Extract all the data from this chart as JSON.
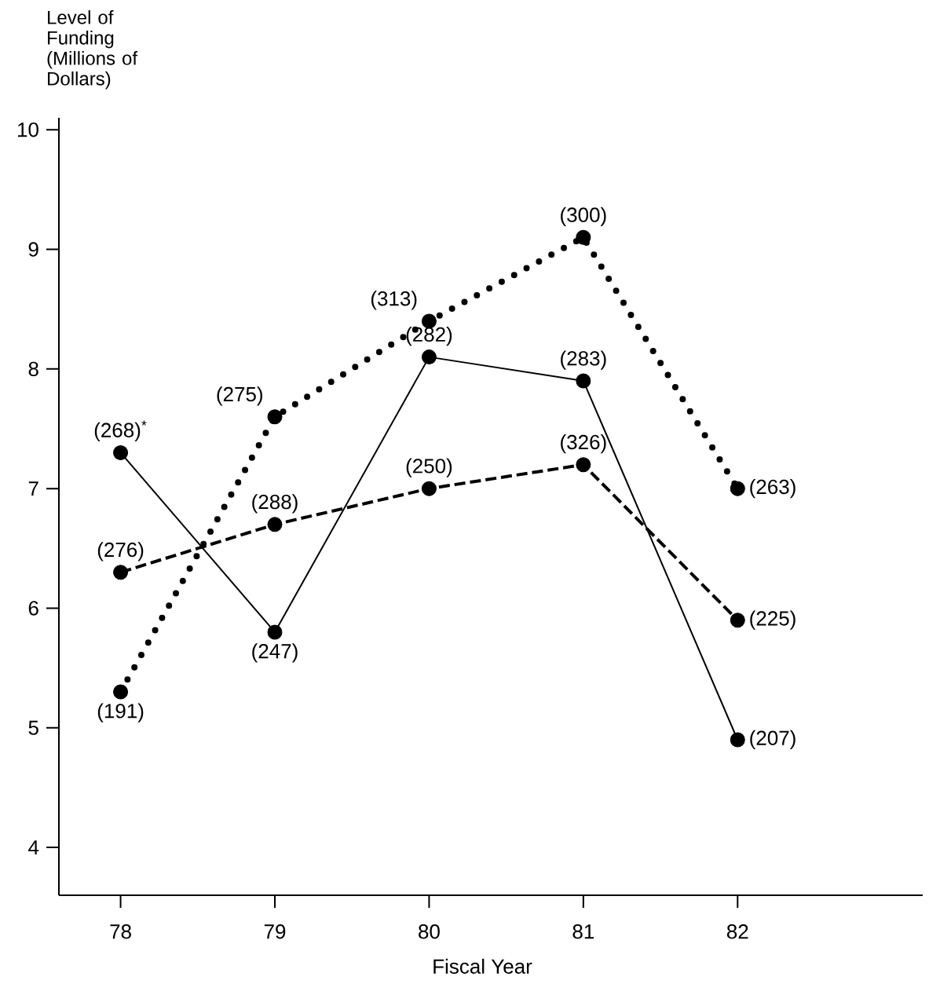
{
  "chart_data": {
    "type": "line",
    "xlabel": "Fiscal Year",
    "ylabel": "Level of Funding (Millions of Dollars)",
    "x": [
      78,
      79,
      80,
      81,
      82
    ],
    "series": [
      {
        "color": "#000000",
        "line_style": "solid",
        "values": [
          7.3,
          5.8,
          8.1,
          7.9,
          4.9
        ]
      },
      {
        "color": "#000000",
        "line_style": "dashed",
        "values": [
          6.3,
          6.7,
          7.0,
          7.2,
          5.9
        ]
      },
      {
        "color": "#000000",
        "line_style": "dotted",
        "values": [
          5.3,
          7.6,
          8.4,
          9.1,
          7.0
        ]
      }
    ],
    "marker": "circle",
    "xlim": [
      77.6,
      83.2
    ],
    "xticks": [
      78,
      79,
      80,
      81,
      82
    ],
    "ylim": [
      3.6,
      10.1
    ],
    "yticks": [
      4,
      5,
      6,
      7,
      8,
      9,
      10
    ],
    "annotations": [
      {
        "text": "(268)$^{*}$",
        "x": 78,
        "y": 7.3
      },
      {
        "text": "(247)",
        "x": 79,
        "y": 5.8
      },
      {
        "text": "(282)",
        "x": 80,
        "y": 8.1
      },
      {
        "text": "(283)",
        "x": 81,
        "y": 7.9
      },
      {
        "text": "(207)",
        "x": 82,
        "y": 4.9
      },
      {
        "text": "(276)",
        "x": 78,
        "y": 6.3
      },
      {
        "text": "(288)",
        "x": 79,
        "y": 6.7
      },
      {
        "text": "(250)",
        "x": 80,
        "y": 7.0
      },
      {
        "text": "(326)",
        "x": 81,
        "y": 7.2
      },
      {
        "text": "(225)",
        "x": 82,
        "y": 5.9
      },
      {
        "text": "(191)",
        "x": 78,
        "y": 5.3
      },
      {
        "text": "(275)",
        "x": 79,
        "y": 7.6
      },
      {
        "text": "(313)",
        "x": 80,
        "y": 8.4
      },
      {
        "text": "(300)",
        "x": 81,
        "y": 9.1
      },
      {
        "text": "(263)",
        "x": 82,
        "y": 7.0
      }
    ]
  }
}
